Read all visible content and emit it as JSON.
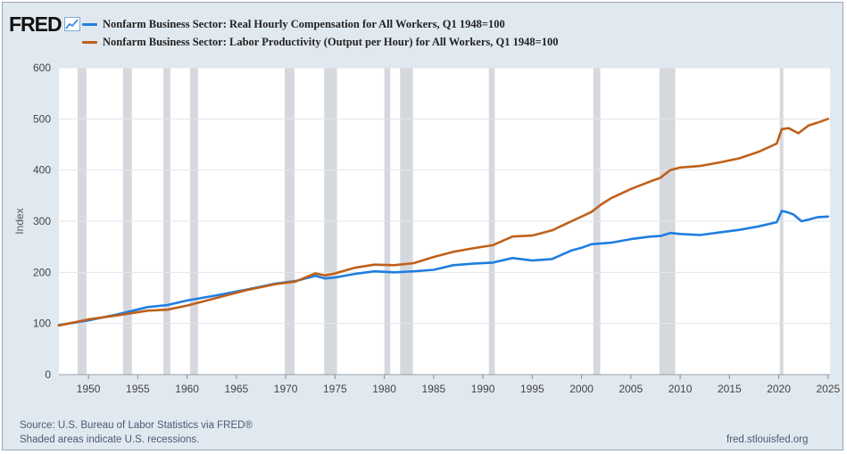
{
  "header": {
    "logo_text": "FRED",
    "logo_icon": "chart-line-icon"
  },
  "legend": [
    {
      "label": "Nonfarm Business Sector: Real Hourly Compensation for All Workers, Q1 1948=100",
      "color": "#1f7ee0"
    },
    {
      "label": "Nonfarm Business Sector: Labor Productivity (Output per Hour) for All Workers, Q1 1948=100",
      "color": "#c0601a"
    }
  ],
  "footer": {
    "source": "Source: U.S. Bureau of Labor Statistics via FRED®",
    "shaded": "Shaded areas indicate U.S. recessions.",
    "site": "fred.stlouisfed.org"
  },
  "chart_data": {
    "type": "line",
    "title": "",
    "xlabel": "",
    "ylabel": "Index",
    "xlim": [
      1947.0,
      2025.2
    ],
    "ylim": [
      0,
      600
    ],
    "yticks": [
      0,
      100,
      200,
      300,
      400,
      500,
      600
    ],
    "xticks": [
      1950,
      1955,
      1960,
      1965,
      1970,
      1975,
      1980,
      1985,
      1990,
      1995,
      2000,
      2005,
      2010,
      2015,
      2020,
      2025
    ],
    "grid": "horizontal",
    "recessions": [
      [
        1948.9,
        1949.8
      ],
      [
        1953.5,
        1954.4
      ],
      [
        1957.6,
        1958.3
      ],
      [
        1960.3,
        1961.1
      ],
      [
        1969.9,
        1970.9
      ],
      [
        1973.9,
        1975.2
      ],
      [
        1980.0,
        1980.6
      ],
      [
        1981.6,
        1982.9
      ],
      [
        1990.6,
        1991.2
      ],
      [
        2001.2,
        2001.9
      ],
      [
        2007.9,
        2009.5
      ],
      [
        2020.1,
        2020.4
      ]
    ],
    "series": [
      {
        "name": "Nonfarm Business Sector: Real Hourly Compensation for All Workers, Q1 1948=100",
        "color": "#1f7ee0",
        "x": [
          1947,
          1948,
          1950,
          1953,
          1956,
          1958,
          1960,
          1963,
          1966,
          1969,
          1971,
          1973,
          1974,
          1975,
          1977,
          1979,
          1981,
          1983,
          1985,
          1987,
          1989,
          1991,
          1993,
          1995,
          1997,
          1999,
          2000,
          2001,
          2003,
          2005,
          2007,
          2008,
          2009,
          2010,
          2012,
          2014,
          2016,
          2018,
          2019.8,
          2020.3,
          2020.8,
          2021.5,
          2022.3,
          2023,
          2024,
          2025
        ],
        "values": [
          97,
          100,
          106,
          118,
          132,
          136,
          145,
          155,
          166,
          178,
          183,
          193,
          188,
          190,
          197,
          202,
          200,
          202,
          205,
          214,
          217,
          219,
          228,
          223,
          226,
          243,
          248,
          255,
          258,
          265,
          270,
          271,
          277,
          275,
          273,
          278,
          283,
          290,
          298,
          320,
          318,
          313,
          300,
          303,
          308,
          309
        ]
      },
      {
        "name": "Nonfarm Business Sector: Labor Productivity (Output per Hour) for All Workers, Q1 1948=100",
        "color": "#c0601a",
        "x": [
          1947,
          1948,
          1950,
          1953,
          1956,
          1958,
          1960,
          1963,
          1966,
          1969,
          1971,
          1973,
          1974,
          1975,
          1977,
          1979,
          1981,
          1983,
          1985,
          1987,
          1989,
          1991,
          1993,
          1995,
          1997,
          1999,
          2001,
          2002,
          2003,
          2005,
          2007,
          2008,
          2009,
          2010,
          2012,
          2014,
          2016,
          2018,
          2019.8,
          2020.3,
          2021,
          2022,
          2023,
          2024,
          2025
        ],
        "values": [
          96,
          100,
          108,
          116,
          125,
          127,
          135,
          150,
          165,
          177,
          182,
          198,
          194,
          198,
          209,
          215,
          214,
          218,
          230,
          240,
          247,
          253,
          270,
          272,
          282,
          300,
          318,
          333,
          345,
          363,
          378,
          385,
          400,
          405,
          408,
          415,
          423,
          436,
          452,
          480,
          482,
          472,
          487,
          493,
          500
        ]
      }
    ]
  }
}
